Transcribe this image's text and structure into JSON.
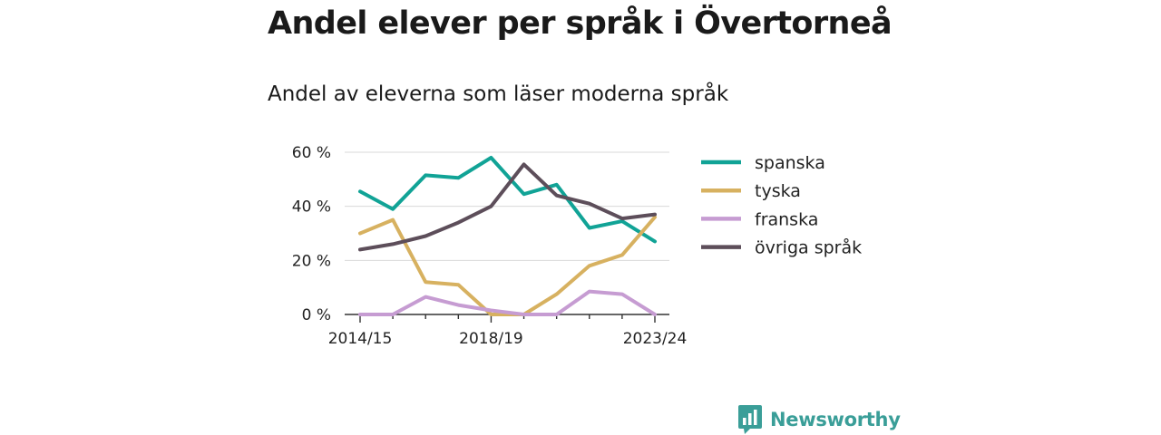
{
  "header": {
    "title": "Andel elever per språk i Övertorneå",
    "subtitle": "Andel av eleverna som läser moderna språk"
  },
  "branding": {
    "logo_text": "Newsworthy",
    "logo_color": "#3a9e98"
  },
  "chart_data": {
    "type": "line",
    "x": [
      "2014/15",
      "2015/16",
      "2016/17",
      "2017/18",
      "2018/19",
      "2019/20",
      "2020/21",
      "2021/22",
      "2022/23",
      "2023/24"
    ],
    "x_tick_labels": [
      "2014/15",
      "2018/19",
      "2023/24"
    ],
    "y_ticks": [
      0,
      20,
      40,
      60
    ],
    "y_tick_labels": [
      "0 %",
      "20 %",
      "40 %",
      "60 %"
    ],
    "ylim": [
      0,
      60
    ],
    "grid": true,
    "legend_position": "right",
    "series": [
      {
        "name": "spanska",
        "color": "#11a396",
        "values": [
          45.5,
          39,
          51.5,
          50.5,
          58,
          44.5,
          48,
          32,
          34.5,
          27
        ]
      },
      {
        "name": "tyska",
        "color": "#d7b160",
        "values": [
          30,
          35,
          12,
          11,
          0,
          0,
          7.5,
          18,
          22,
          36
        ]
      },
      {
        "name": "franska",
        "color": "#c69cd2",
        "values": [
          0,
          0,
          6.5,
          3.5,
          1.5,
          0,
          0,
          8.5,
          7.5,
          0
        ]
      },
      {
        "name": "övriga språk",
        "color": "#5d4e5a",
        "values": [
          24,
          26,
          29,
          34,
          40,
          55.5,
          44,
          41,
          35.5,
          37
        ]
      }
    ]
  }
}
